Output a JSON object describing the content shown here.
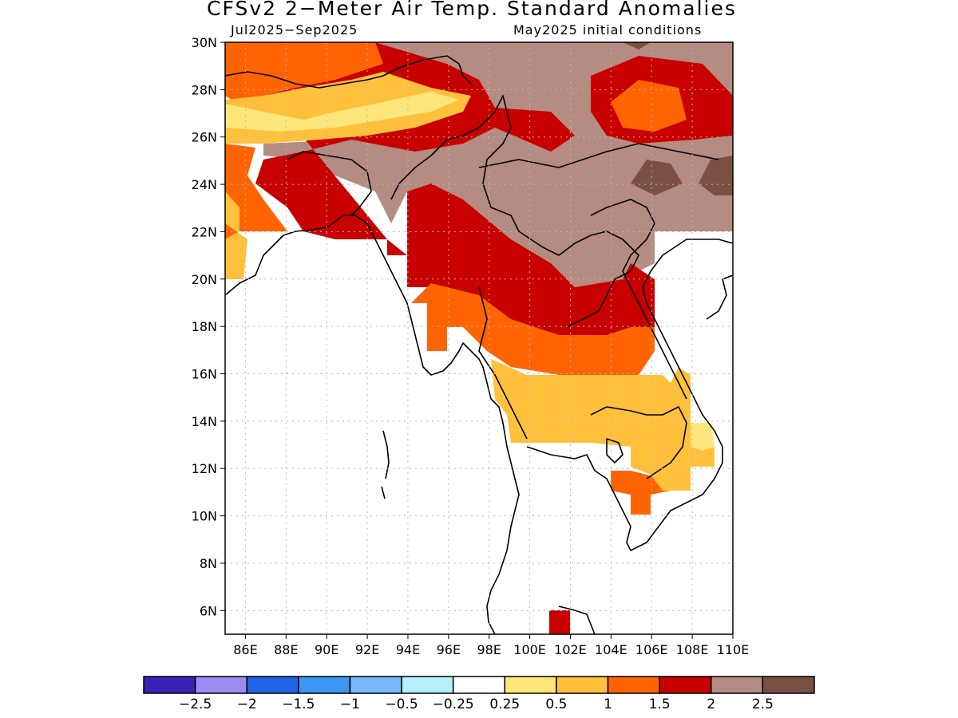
{
  "header": {
    "title": "CFSv2 2−Meter Air Temp. Standard Anomalies",
    "period": "Jul2025−Sep2025",
    "init": "May2025 initial conditions"
  },
  "map": {
    "region": {
      "lon_min": 85,
      "lon_max": 110,
      "lat_min": 5,
      "lat_max": 30
    },
    "lat_ticks": [
      "30N",
      "28N",
      "26N",
      "24N",
      "22N",
      "20N",
      "18N",
      "16N",
      "14N",
      "12N",
      "10N",
      "8N",
      "6N"
    ],
    "lon_ticks": [
      "86E",
      "88E",
      "90E",
      "92E",
      "94E",
      "96E",
      "98E",
      "100E",
      "102E",
      "104E",
      "106E",
      "108E",
      "110E"
    ],
    "gridlines": true
  },
  "colorbar": {
    "colors": [
      "#3a20b8",
      "#9f8af2",
      "#1e64e6",
      "#3c96f4",
      "#78b8f8",
      "#b4f0fa",
      "#ffffff",
      "#ffe67a",
      "#ffc03c",
      "#ff6400",
      "#c80000",
      "#b48c82",
      "#7a5044"
    ],
    "labels": [
      "−2.5",
      "−2",
      "−1.5",
      "−1",
      "−0.5",
      "−0.25",
      "0.25",
      "0.5",
      "1",
      "1.5",
      "2",
      "2.5"
    ]
  }
}
